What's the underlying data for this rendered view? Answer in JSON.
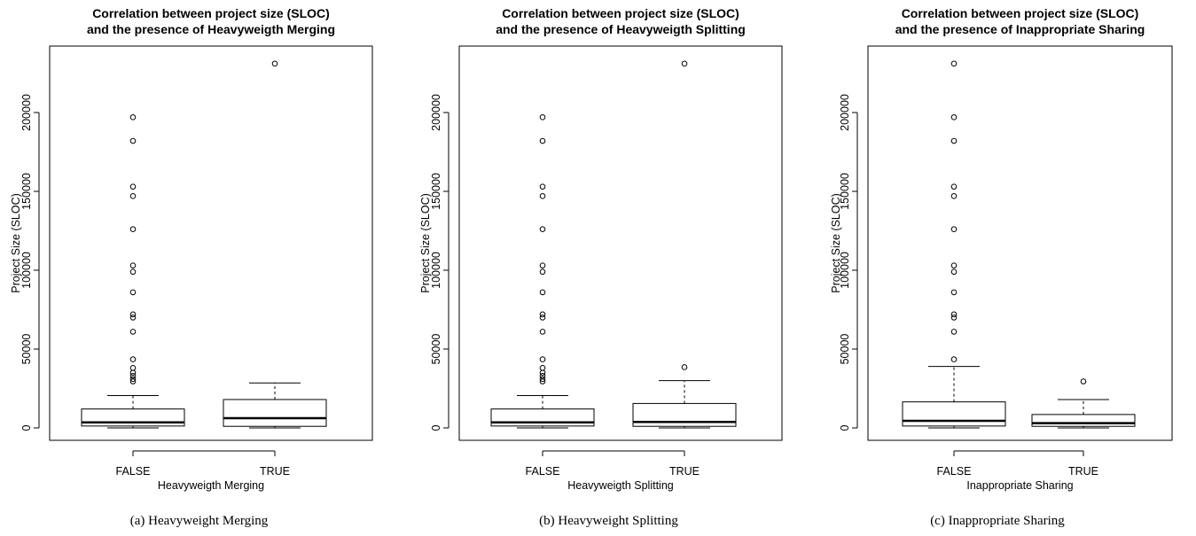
{
  "chart_data": [
    {
      "type": "boxplot",
      "title": [
        "Correlation between project size (SLOC)",
        "and the presence of Heavyweigth Merging"
      ],
      "xlabel": "Heavyweigth Merging",
      "ylabel": "Project Size (SLOC)",
      "caption": "(a)  Heavyweight Merging",
      "ylim": [
        0,
        230000
      ],
      "yticks": [
        0,
        50000,
        100000,
        150000,
        200000
      ],
      "categories": [
        "FALSE",
        "TRUE"
      ],
      "boxes": [
        {
          "category": "FALSE",
          "min": 0,
          "q1": 1200,
          "median": 3500,
          "q3": 12000,
          "max": 20500,
          "outliers": [
            29500,
            31000,
            33000,
            35000,
            38000,
            43500,
            61000,
            70000,
            72000,
            86000,
            99000,
            103000,
            126000,
            147000,
            153000,
            182000,
            197000
          ]
        },
        {
          "category": "TRUE",
          "min": 0,
          "q1": 1000,
          "median": 6200,
          "q3": 18000,
          "max": 28500,
          "outliers": [
            231000
          ]
        }
      ]
    },
    {
      "type": "boxplot",
      "title": [
        "Correlation between project size (SLOC)",
        "and the presence of Heavyweigth Splitting"
      ],
      "xlabel": "Heavyweigth Splitting",
      "ylabel": "Project Size (SLOC)",
      "caption": "(b)  Heavyweight Splitting",
      "ylim": [
        0,
        230000
      ],
      "yticks": [
        0,
        50000,
        100000,
        150000,
        200000
      ],
      "categories": [
        "FALSE",
        "TRUE"
      ],
      "boxes": [
        {
          "category": "FALSE",
          "min": 0,
          "q1": 1200,
          "median": 3500,
          "q3": 12000,
          "max": 20500,
          "outliers": [
            29500,
            31000,
            33000,
            35000,
            38000,
            43500,
            61000,
            70000,
            72000,
            86000,
            99000,
            103000,
            126000,
            147000,
            153000,
            182000,
            197000
          ]
        },
        {
          "category": "TRUE",
          "min": 0,
          "q1": 1000,
          "median": 3800,
          "q3": 15500,
          "max": 30000,
          "outliers": [
            38500,
            231000
          ]
        }
      ]
    },
    {
      "type": "boxplot",
      "title": [
        "Correlation between project size (SLOC)",
        "and the presence of Inappropriate Sharing"
      ],
      "xlabel": "Inappropriate Sharing",
      "ylabel": "Project Size (SLOC)",
      "caption": "(c)  Inappropriate Sharing",
      "ylim": [
        0,
        230000
      ],
      "yticks": [
        0,
        50000,
        100000,
        150000,
        200000
      ],
      "categories": [
        "FALSE",
        "TRUE"
      ],
      "boxes": [
        {
          "category": "FALSE",
          "min": 0,
          "q1": 1200,
          "median": 4500,
          "q3": 16500,
          "max": 39000,
          "outliers": [
            43500,
            61000,
            70000,
            72000,
            86000,
            99000,
            103000,
            126000,
            147000,
            153000,
            182000,
            197000,
            231000
          ]
        },
        {
          "category": "TRUE",
          "min": 0,
          "q1": 1000,
          "median": 3000,
          "q3": 8500,
          "max": 18000,
          "outliers": [
            29500
          ]
        }
      ]
    }
  ]
}
